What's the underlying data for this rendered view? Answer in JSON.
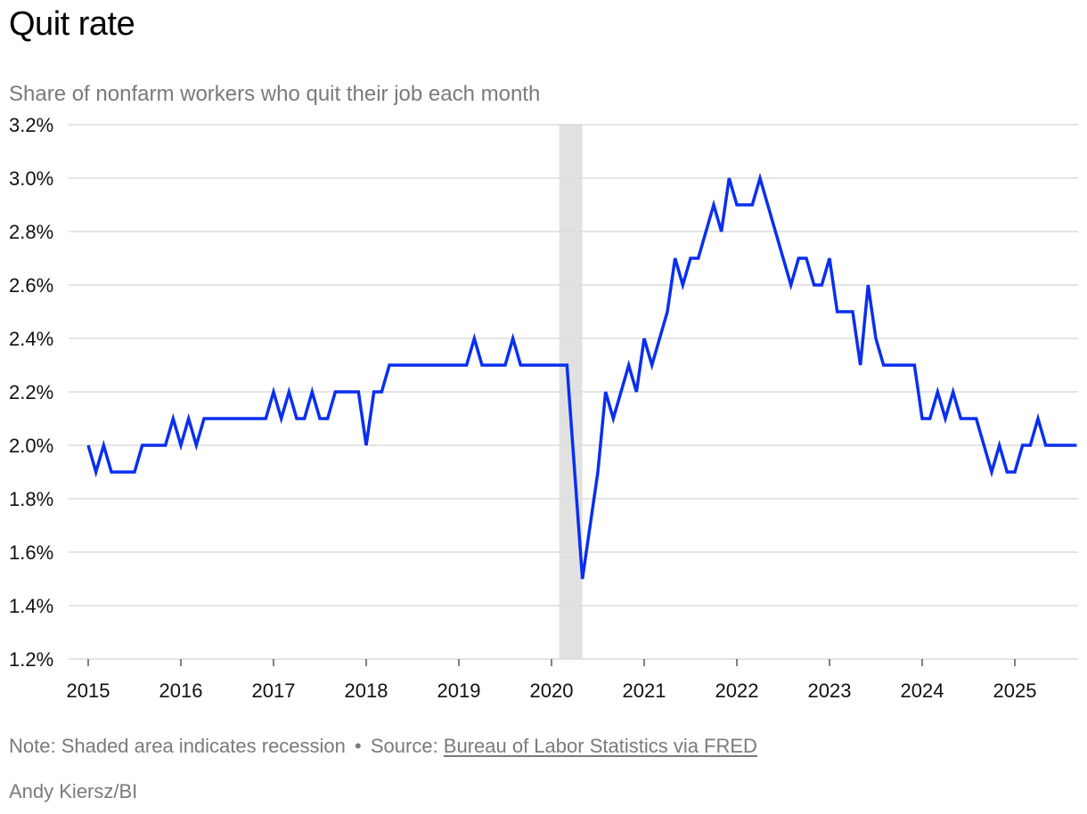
{
  "chart_data": {
    "type": "line",
    "title": "Quit rate",
    "subtitle": "Share of nonfarm workers who quit their job each month",
    "ylim": [
      1.2,
      3.2
    ],
    "yticks": [
      "1.2%",
      "1.4%",
      "1.6%",
      "1.8%",
      "2.0%",
      "2.2%",
      "2.4%",
      "2.6%",
      "2.8%",
      "3.0%",
      "3.2%"
    ],
    "xticks": [
      "2015",
      "2016",
      "2017",
      "2018",
      "2019",
      "2020",
      "2021",
      "2022",
      "2023",
      "2024",
      "2025"
    ],
    "grid": true,
    "recession": {
      "start": "2020-02",
      "end": "2020-04"
    },
    "series": [
      {
        "color": "#0a2ff0",
        "x_start": "2015-01",
        "frequency": "monthly",
        "values": [
          2.0,
          1.9,
          2.0,
          1.9,
          1.9,
          1.9,
          1.9,
          2.0,
          2.0,
          2.0,
          2.0,
          2.1,
          2.0,
          2.1,
          2.0,
          2.1,
          2.1,
          2.1,
          2.1,
          2.1,
          2.1,
          2.1,
          2.1,
          2.1,
          2.2,
          2.1,
          2.2,
          2.1,
          2.1,
          2.2,
          2.1,
          2.1,
          2.2,
          2.2,
          2.2,
          2.2,
          2.0,
          2.2,
          2.2,
          2.3,
          2.3,
          2.3,
          2.3,
          2.3,
          2.3,
          2.3,
          2.3,
          2.3,
          2.3,
          2.3,
          2.4,
          2.3,
          2.3,
          2.3,
          2.3,
          2.4,
          2.3,
          2.3,
          2.3,
          2.3,
          2.3,
          2.3,
          2.3,
          1.9,
          1.5,
          1.7,
          1.9,
          2.2,
          2.1,
          2.2,
          2.3,
          2.2,
          2.4,
          2.3,
          2.4,
          2.5,
          2.7,
          2.6,
          2.7,
          2.7,
          2.8,
          2.9,
          2.8,
          3.0,
          2.9,
          2.9,
          2.9,
          3.0,
          2.9,
          2.8,
          2.7,
          2.6,
          2.7,
          2.7,
          2.6,
          2.6,
          2.7,
          2.5,
          2.5,
          2.5,
          2.3,
          2.6,
          2.4,
          2.3,
          2.3,
          2.3,
          2.3,
          2.3,
          2.1,
          2.1,
          2.2,
          2.1,
          2.2,
          2.1,
          2.1,
          2.1,
          2.0,
          1.9,
          2.0,
          1.9,
          1.9,
          2.0,
          2.0,
          2.1,
          2.0,
          2.0,
          2.0,
          2.0,
          2.0
        ]
      }
    ]
  },
  "footer": {
    "note": "Note: Shaded area indicates recession",
    "separator": "•",
    "source_prefix": "Source: ",
    "source_link": "Bureau of Labor Statistics via FRED",
    "byline": "Andy Kiersz/BI"
  }
}
